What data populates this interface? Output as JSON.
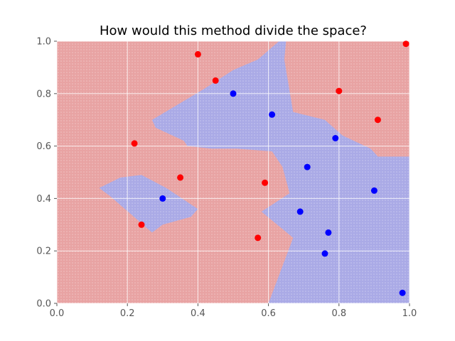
{
  "chart_data": {
    "type": "scatter",
    "title": "How would this method divide the space?",
    "xlabel": "",
    "ylabel": "",
    "xlim": [
      0,
      1
    ],
    "ylim": [
      0,
      1
    ],
    "x_ticks": [
      "0.0",
      "0.2",
      "0.4",
      "0.6",
      "0.8",
      "1.0"
    ],
    "y_ticks": [
      "0.0",
      "0.2",
      "0.4",
      "0.6",
      "0.8",
      "1.0"
    ],
    "grid": true,
    "background_region_color": "#e8a3a3",
    "highlight_region_color": "#aaaae6",
    "highlight_regions": [
      [
        [
          0.63,
          1.0
        ],
        [
          0.65,
          1.0
        ],
        [
          0.645,
          0.93
        ],
        [
          0.67,
          0.73
        ],
        [
          0.76,
          0.7
        ],
        [
          0.81,
          0.64
        ],
        [
          0.89,
          0.59
        ],
        [
          0.91,
          0.56
        ],
        [
          1.0,
          0.56
        ],
        [
          1.0,
          0.0
        ],
        [
          0.6,
          0.0
        ],
        [
          0.67,
          0.25
        ],
        [
          0.58,
          0.35
        ],
        [
          0.66,
          0.42
        ],
        [
          0.64,
          0.52
        ],
        [
          0.61,
          0.58
        ],
        [
          0.51,
          0.59
        ],
        [
          0.44,
          0.59
        ],
        [
          0.37,
          0.6
        ],
        [
          0.36,
          0.62
        ],
        [
          0.28,
          0.67
        ],
        [
          0.27,
          0.7
        ],
        [
          0.42,
          0.82
        ],
        [
          0.5,
          0.89
        ],
        [
          0.57,
          0.93
        ]
      ],
      [
        [
          0.12,
          0.44
        ],
        [
          0.18,
          0.48
        ],
        [
          0.24,
          0.49
        ],
        [
          0.31,
          0.44
        ],
        [
          0.4,
          0.36
        ],
        [
          0.38,
          0.33
        ],
        [
          0.3,
          0.3
        ],
        [
          0.27,
          0.27
        ],
        [
          0.21,
          0.34
        ],
        [
          0.15,
          0.41
        ]
      ]
    ],
    "series": [
      {
        "color": "#ff0000",
        "points": [
          [
            0.4,
            0.95
          ],
          [
            0.45,
            0.85
          ],
          [
            0.8,
            0.81
          ],
          [
            0.91,
            0.7
          ],
          [
            0.22,
            0.61
          ],
          [
            0.35,
            0.48
          ],
          [
            0.59,
            0.46
          ],
          [
            0.24,
            0.3
          ],
          [
            0.57,
            0.25
          ],
          [
            0.99,
            0.99
          ]
        ]
      },
      {
        "color": "#0000ff",
        "points": [
          [
            0.5,
            0.8
          ],
          [
            0.61,
            0.72
          ],
          [
            0.79,
            0.63
          ],
          [
            0.71,
            0.52
          ],
          [
            0.9,
            0.43
          ],
          [
            0.3,
            0.4
          ],
          [
            0.69,
            0.35
          ],
          [
            0.77,
            0.27
          ],
          [
            0.76,
            0.19
          ],
          [
            0.98,
            0.04
          ]
        ]
      }
    ]
  }
}
